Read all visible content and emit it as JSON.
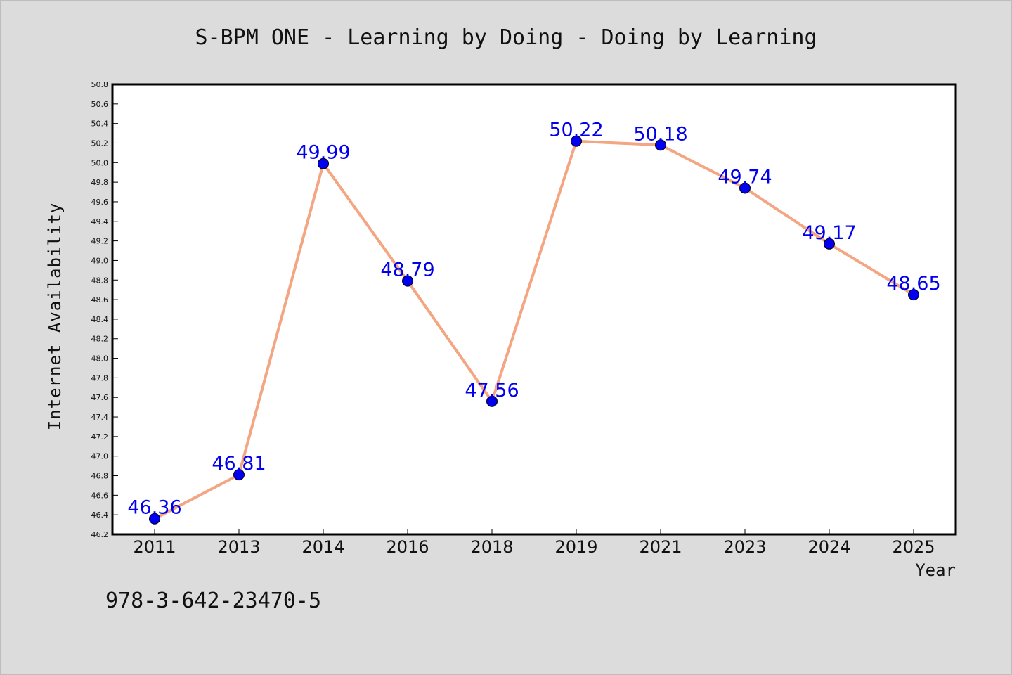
{
  "chart_data": {
    "type": "line",
    "title": "S-BPM ONE - Learning by Doing - Doing by Learning",
    "xlabel": "Year",
    "ylabel": "Internet Availability",
    "categories": [
      "2011",
      "2013",
      "2014",
      "2016",
      "2018",
      "2019",
      "2021",
      "2023",
      "2024",
      "2025"
    ],
    "values": [
      46.36,
      46.81,
      49.99,
      48.79,
      47.56,
      50.22,
      50.18,
      49.74,
      49.17,
      48.65
    ],
    "data_labels": [
      "46.36",
      "46.81",
      "49.99",
      "48.79",
      "47.56",
      "50.22",
      "50.18",
      "49.74",
      "49.17",
      "48.65"
    ],
    "ylim": [
      46.2,
      50.8
    ],
    "yticks": [
      "46.2",
      "46.4",
      "46.6",
      "46.8",
      "47.0",
      "47.2",
      "47.4",
      "47.6",
      "47.8",
      "48.0",
      "48.2",
      "48.4",
      "48.6",
      "48.8",
      "49.0",
      "49.2",
      "49.4",
      "49.6",
      "49.8",
      "50.0",
      "50.2",
      "50.4",
      "50.6",
      "50.8"
    ],
    "grid": false,
    "legend": "none",
    "colors": {
      "background": "#dcdcdc",
      "plot_background": "#ffffff",
      "line": "#f4a582",
      "marker": "#0000ee",
      "data_label": "#0000ee",
      "axis": "#000000",
      "text": "#111111"
    }
  },
  "annotation": "978-3-642-23470-5"
}
